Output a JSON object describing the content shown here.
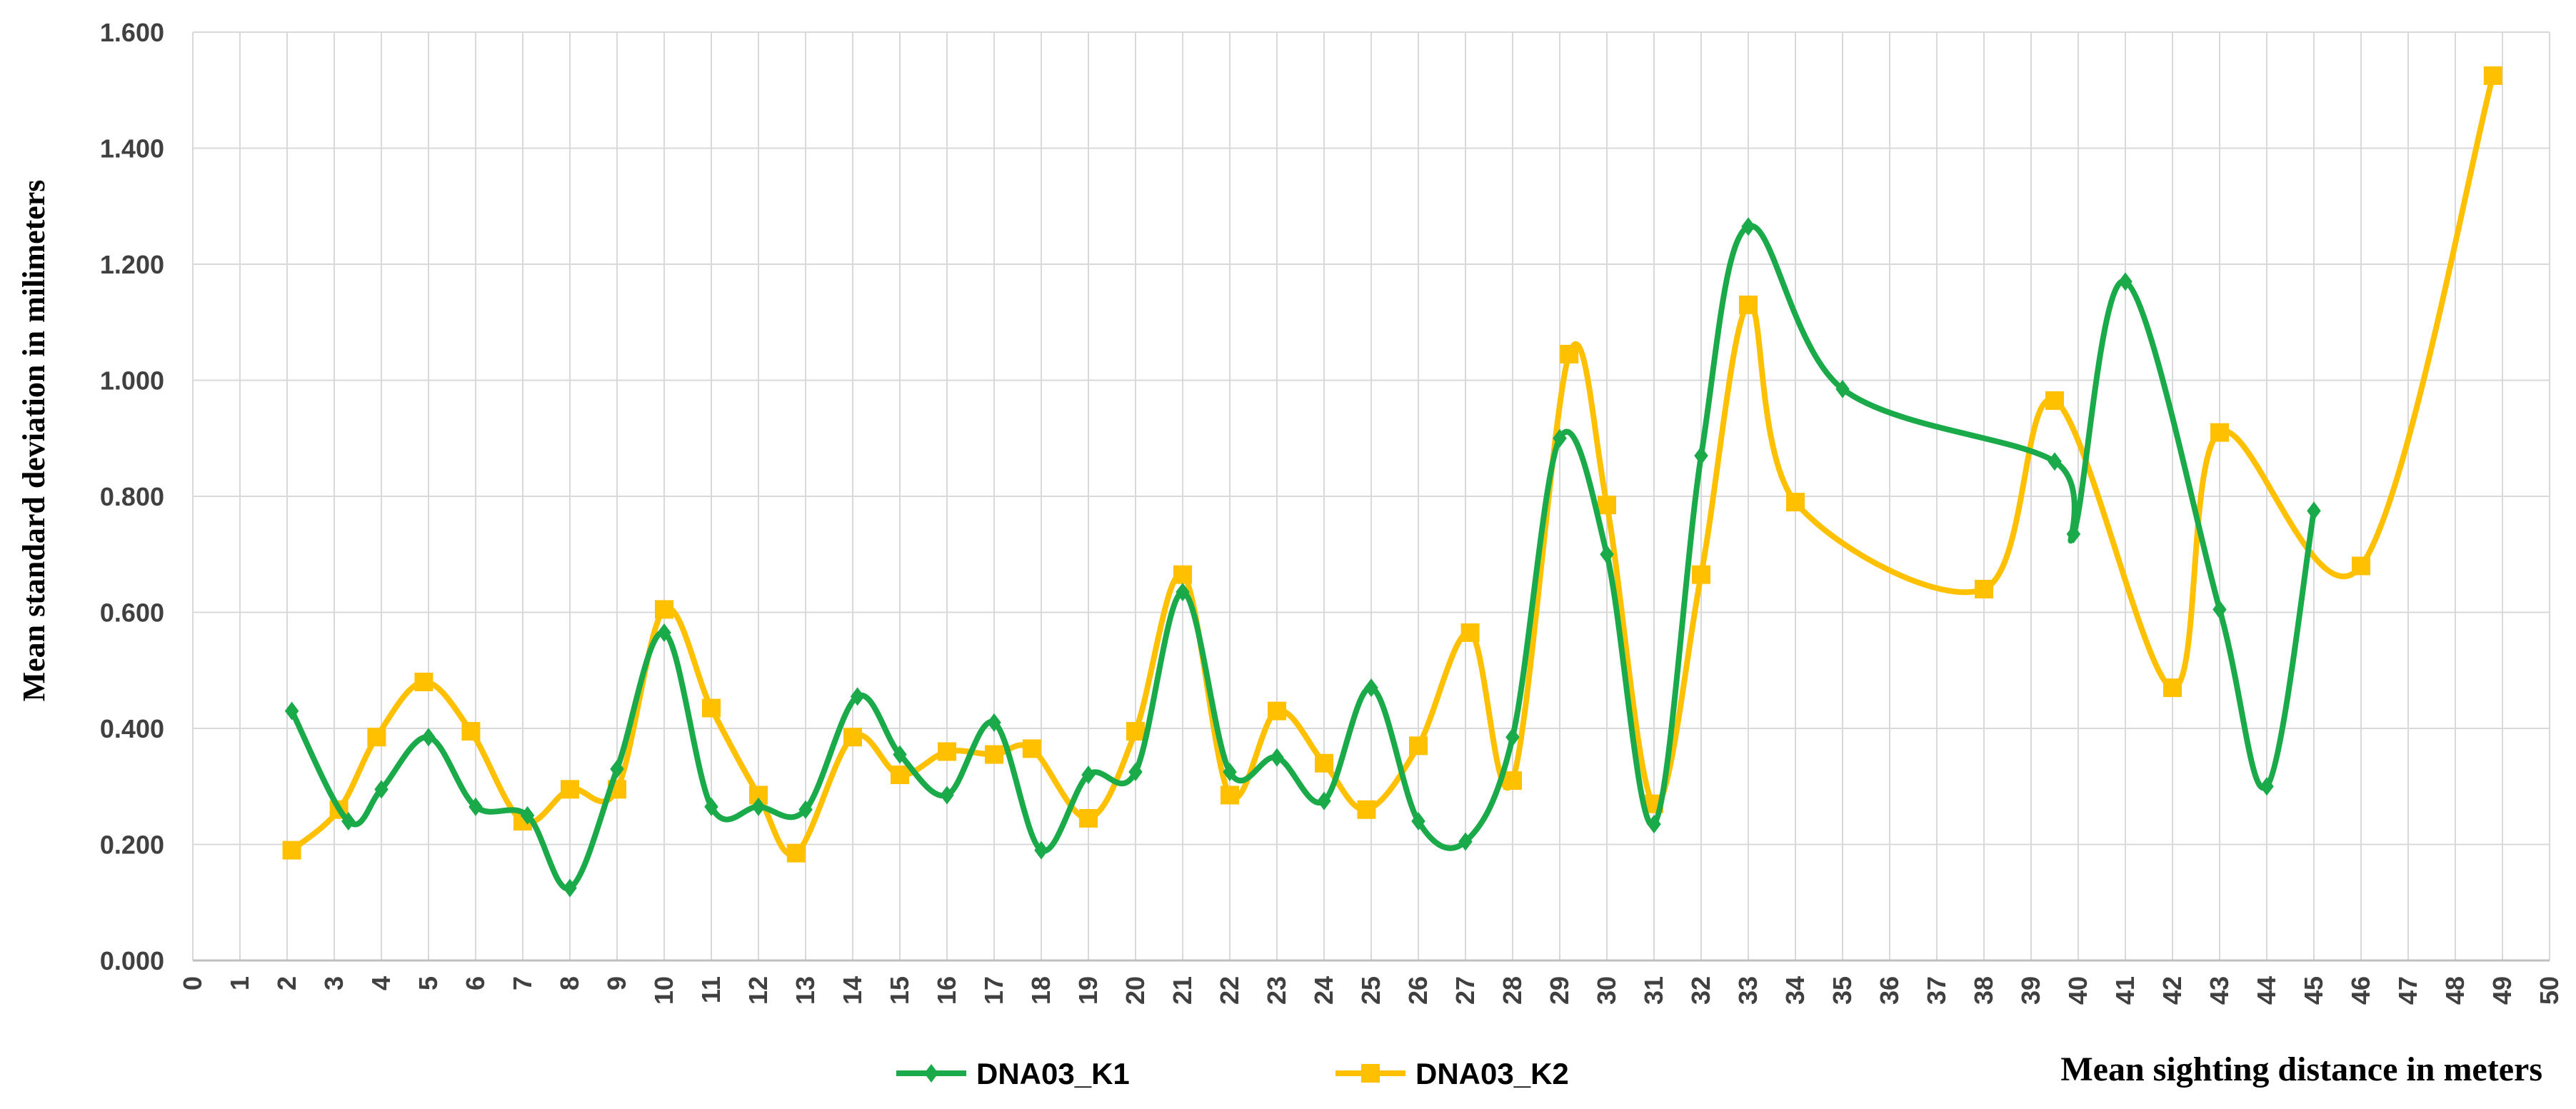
{
  "chart_data": {
    "type": "line",
    "xlabel": "Mean sighting distance in meters",
    "ylabel": "Mean standard deviation in milimeters",
    "xlim": [
      0,
      50
    ],
    "ylim": [
      0,
      1.6
    ],
    "x_ticks": [
      "0",
      "1",
      "2",
      "3",
      "4",
      "5",
      "6",
      "7",
      "8",
      "9",
      "10",
      "11",
      "12",
      "13",
      "14",
      "15",
      "16",
      "17",
      "18",
      "19",
      "20",
      "21",
      "22",
      "23",
      "24",
      "25",
      "26",
      "27",
      "28",
      "29",
      "30",
      "31",
      "32",
      "33",
      "34",
      "35",
      "36",
      "37",
      "38",
      "39",
      "40",
      "41",
      "42",
      "43",
      "44",
      "45",
      "46",
      "47",
      "48",
      "49",
      "50"
    ],
    "y_ticks": [
      "0.000",
      "0.200",
      "0.400",
      "0.600",
      "0.800",
      "1.000",
      "1.200",
      "1.400",
      "1.600"
    ],
    "grid": true,
    "legend": "bottom-center",
    "series": [
      {
        "name": "DNA03_K1",
        "color": "#1aaa4a",
        "marker": "diamond",
        "points": [
          [
            2.1,
            0.43
          ],
          [
            3.3,
            0.24
          ],
          [
            4.0,
            0.295
          ],
          [
            5.0,
            0.385
          ],
          [
            6.0,
            0.265
          ],
          [
            7.1,
            0.25
          ],
          [
            8.0,
            0.125
          ],
          [
            9.0,
            0.33
          ],
          [
            10.0,
            0.565
          ],
          [
            11.0,
            0.265
          ],
          [
            12.0,
            0.265
          ],
          [
            13.0,
            0.26
          ],
          [
            14.1,
            0.455
          ],
          [
            15.0,
            0.355
          ],
          [
            16.0,
            0.285
          ],
          [
            17.0,
            0.41
          ],
          [
            18.0,
            0.19
          ],
          [
            19.0,
            0.32
          ],
          [
            20.0,
            0.325
          ],
          [
            21.0,
            0.635
          ],
          [
            22.0,
            0.325
          ],
          [
            23.0,
            0.35
          ],
          [
            24.0,
            0.275
          ],
          [
            25.0,
            0.47
          ],
          [
            26.0,
            0.24
          ],
          [
            27.0,
            0.205
          ],
          [
            28.0,
            0.385
          ],
          [
            29.0,
            0.9
          ],
          [
            30.0,
            0.7
          ],
          [
            31.0,
            0.235
          ],
          [
            32.0,
            0.87
          ],
          [
            33.0,
            1.265
          ],
          [
            35.0,
            0.985
          ],
          [
            39.5,
            0.86
          ],
          [
            39.9,
            0.735
          ],
          [
            41.0,
            1.17
          ],
          [
            43.0,
            0.605
          ],
          [
            44.0,
            0.3
          ],
          [
            45.0,
            0.775
          ]
        ]
      },
      {
        "name": "DNA03_K2",
        "color": "#ffc000",
        "marker": "square",
        "points": [
          [
            2.1,
            0.19
          ],
          [
            3.1,
            0.26
          ],
          [
            3.9,
            0.385
          ],
          [
            4.9,
            0.48
          ],
          [
            5.9,
            0.395
          ],
          [
            7.0,
            0.24
          ],
          [
            8.0,
            0.295
          ],
          [
            9.0,
            0.295
          ],
          [
            10.0,
            0.605
          ],
          [
            11.0,
            0.435
          ],
          [
            12.0,
            0.285
          ],
          [
            12.8,
            0.185
          ],
          [
            14.0,
            0.385
          ],
          [
            15.0,
            0.32
          ],
          [
            16.0,
            0.36
          ],
          [
            17.0,
            0.355
          ],
          [
            17.8,
            0.365
          ],
          [
            19.0,
            0.245
          ],
          [
            20.0,
            0.395
          ],
          [
            21.0,
            0.665
          ],
          [
            22.0,
            0.285
          ],
          [
            23.0,
            0.43
          ],
          [
            24.0,
            0.34
          ],
          [
            24.9,
            0.26
          ],
          [
            26.0,
            0.37
          ],
          [
            27.1,
            0.565
          ],
          [
            28.0,
            0.31
          ],
          [
            29.2,
            1.045
          ],
          [
            30.0,
            0.785
          ],
          [
            31.0,
            0.27
          ],
          [
            32.0,
            0.665
          ],
          [
            33.0,
            1.13
          ],
          [
            34.0,
            0.79
          ],
          [
            38.0,
            0.64
          ],
          [
            39.5,
            0.965
          ],
          [
            42.0,
            0.47
          ],
          [
            43.0,
            0.91
          ],
          [
            46.0,
            0.68
          ],
          [
            48.8,
            1.525
          ]
        ]
      }
    ]
  }
}
